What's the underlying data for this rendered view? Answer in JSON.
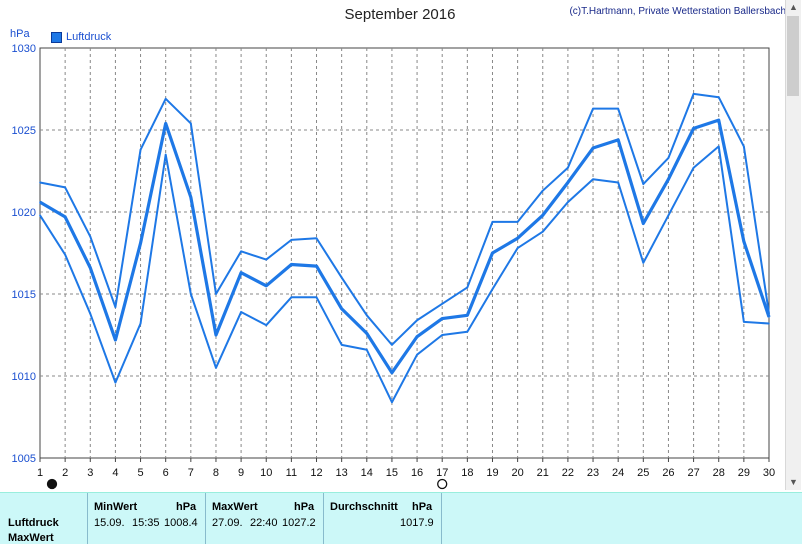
{
  "title": "September 2016",
  "credit": "(c)T.Hartmann, Private Wetterstation Ballersbach",
  "unit": "hPa",
  "legend": "Luftdruck",
  "colors": {
    "line": "#1e78e6",
    "grid": "#888888"
  },
  "chart_data": {
    "type": "line",
    "x": [
      1,
      2,
      3,
      4,
      5,
      6,
      7,
      8,
      9,
      10,
      11,
      12,
      13,
      14,
      15,
      16,
      17,
      18,
      19,
      20,
      21,
      22,
      23,
      24,
      25,
      26,
      27,
      28,
      29,
      30
    ],
    "x_tick_labels": [
      "1",
      "2",
      "3",
      "4",
      "5",
      "6",
      "7",
      "8",
      "9",
      "10",
      "11",
      "12",
      "13",
      "14",
      "15",
      "16",
      "17",
      "18",
      "19",
      "20",
      "21",
      "22",
      "23",
      "24",
      "25",
      "26",
      "27",
      "28",
      "29",
      "30"
    ],
    "ylim": [
      1005,
      1030
    ],
    "y_ticks": [
      1005,
      1010,
      1015,
      1020,
      1025,
      1030
    ],
    "grid": true,
    "legend_position": "top-left",
    "series": [
      {
        "name": "Luftdruck",
        "role": "max",
        "values": [
          1021.8,
          1021.5,
          1018.5,
          1014.2,
          1023.8,
          1026.9,
          1025.4,
          1015.0,
          1017.6,
          1017.1,
          1018.3,
          1018.4,
          1016.0,
          1013.7,
          1011.9,
          1013.4,
          1014.4,
          1015.4,
          1019.4,
          1019.4,
          1021.3,
          1022.7,
          1026.3,
          1026.3,
          1021.7,
          1023.3,
          1027.2,
          1027.0,
          1024.0,
          1013.8
        ]
      },
      {
        "name": "Luftdruck",
        "role": "mean",
        "values": [
          1020.6,
          1019.7,
          1016.6,
          1012.2,
          1018.1,
          1025.4,
          1020.9,
          1012.5,
          1016.3,
          1015.5,
          1016.8,
          1016.7,
          1014.1,
          1012.6,
          1010.2,
          1012.4,
          1013.5,
          1013.7,
          1017.5,
          1018.4,
          1019.8,
          1021.8,
          1023.9,
          1024.4,
          1019.3,
          1022.0,
          1025.1,
          1025.6,
          1018.2,
          1013.6
        ]
      },
      {
        "name": "Luftdruck",
        "role": "min",
        "values": [
          1019.8,
          1017.4,
          1013.8,
          1009.6,
          1013.2,
          1023.5,
          1015.0,
          1010.5,
          1013.9,
          1013.1,
          1014.8,
          1014.8,
          1011.9,
          1011.6,
          1008.4,
          1011.3,
          1012.5,
          1012.7,
          1015.3,
          1017.8,
          1018.8,
          1020.6,
          1022.0,
          1021.8,
          1016.9,
          1019.8,
          1022.7,
          1024.0,
          1013.3,
          1013.2
        ]
      }
    ],
    "markers": [
      {
        "x": 1,
        "symbol": "filled-circle",
        "meaning": "new moon"
      },
      {
        "x": 17,
        "symbol": "open-circle",
        "meaning": "full moon"
      }
    ]
  },
  "stats": {
    "row_labels": [
      "Luftdruck",
      "MaxWert"
    ],
    "min": {
      "header": "MinWert",
      "unit": "hPa",
      "date": "15.09.",
      "time": "15:35",
      "value": "1008.4"
    },
    "max": {
      "header": "MaxWert",
      "unit": "hPa",
      "date": "27.09.",
      "time": "22:40",
      "value": "1027.2"
    },
    "avg": {
      "header": "Durchschnitt",
      "unit": "hPa",
      "value": "1017.9"
    }
  }
}
